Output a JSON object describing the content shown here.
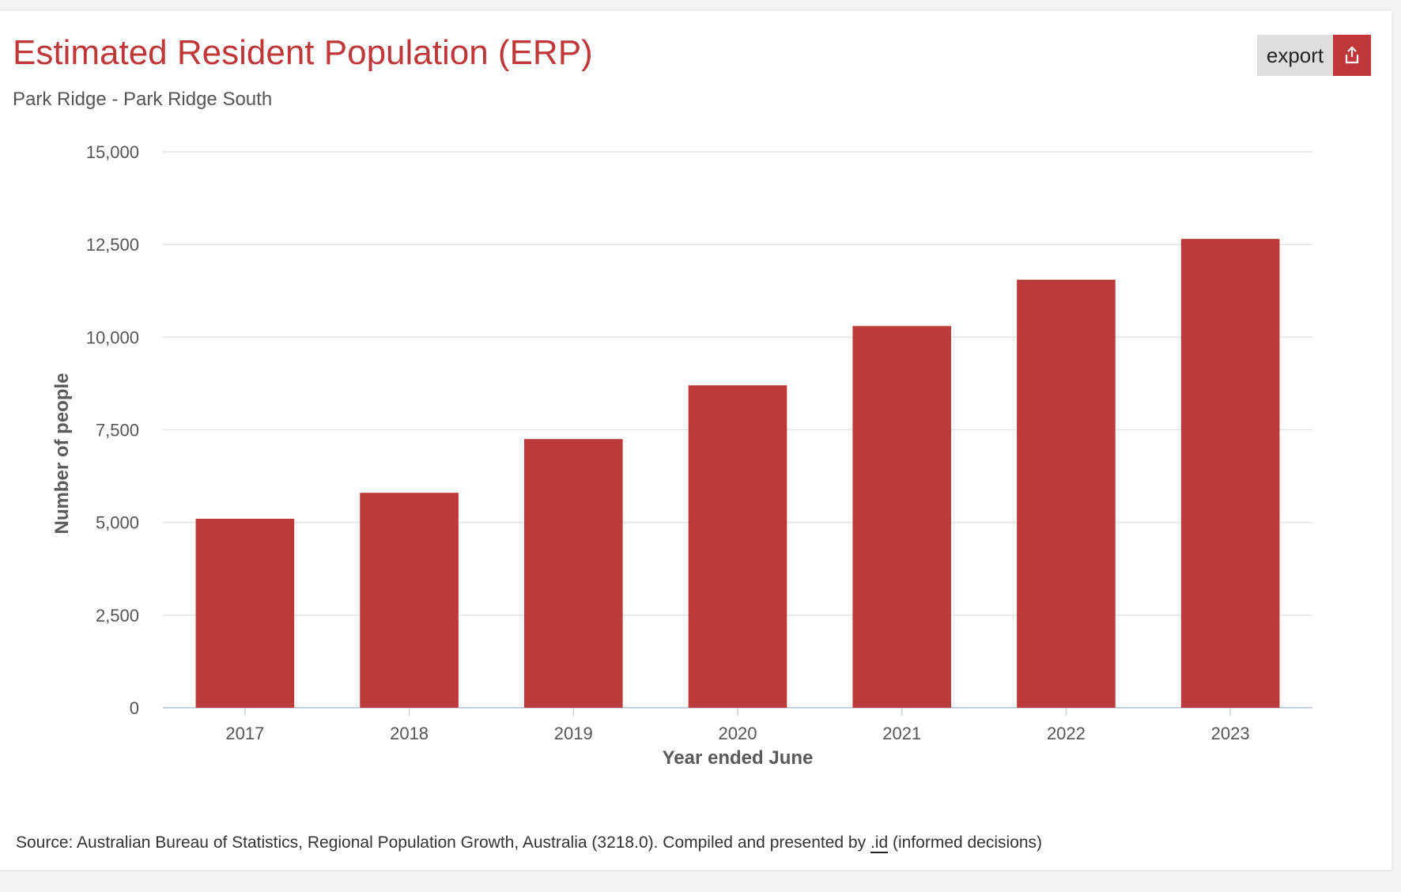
{
  "header": {
    "title": "Estimated Resident Population (ERP)",
    "subtitle": "Park Ridge - Park Ridge South",
    "export_label": "export",
    "export_icon": "upload-share-icon"
  },
  "footer": {
    "source_prefix": "Source: Australian Bureau of Statistics, Regional Population Growth, Australia (3218.0). Compiled and presented by ",
    "source_link": ".id",
    "source_suffix": " (informed decisions)"
  },
  "colors": {
    "accent": "#c0373a",
    "bar": "#bc3a3a",
    "grid": "#e3e3e3"
  },
  "chart_data": {
    "type": "bar",
    "title": "Estimated Resident Population (ERP)",
    "subtitle": "Park Ridge - Park Ridge South",
    "xlabel": "Year ended June",
    "ylabel": "Number of people",
    "categories": [
      "2017",
      "2018",
      "2019",
      "2020",
      "2021",
      "2022",
      "2023"
    ],
    "series": [
      {
        "values": [
          5100,
          5800,
          7250,
          8700,
          10300,
          11550,
          12650
        ]
      }
    ],
    "ylim": [
      0,
      15000
    ],
    "yticks": [
      0,
      2500,
      5000,
      7500,
      10000,
      12500,
      15000
    ],
    "ytick_labels": [
      "0",
      "2,500",
      "5,000",
      "7,500",
      "10,000",
      "12,500",
      "15,000"
    ],
    "grid": true,
    "legend": "none"
  }
}
